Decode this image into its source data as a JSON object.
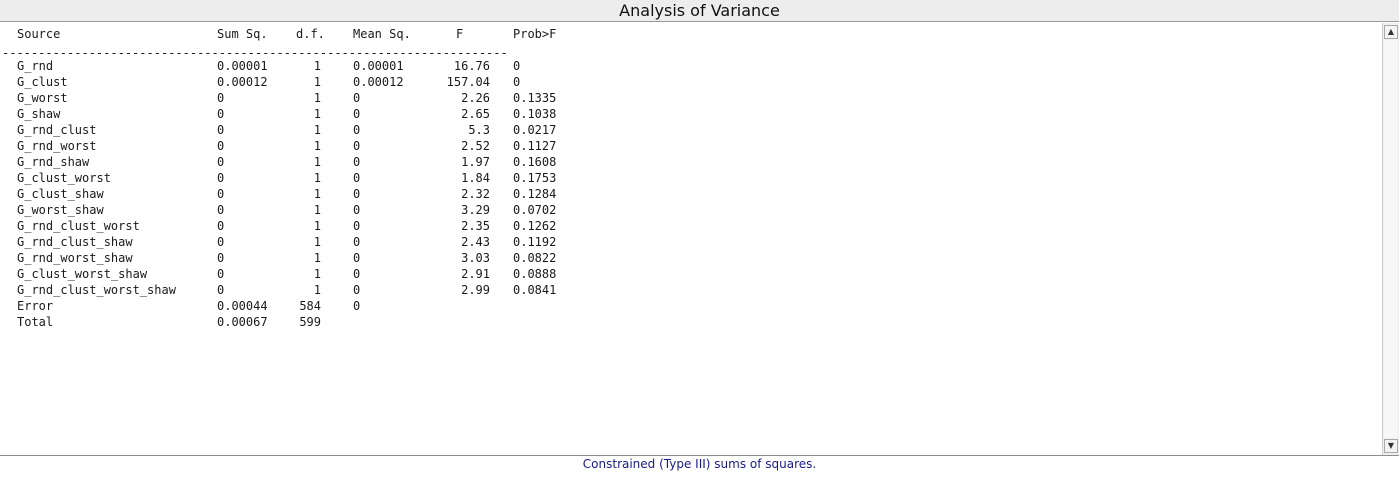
{
  "window": {
    "title": "Analysis of Variance"
  },
  "table": {
    "headers": {
      "source": "Source",
      "sum_sq": "Sum Sq.",
      "df": "d.f.",
      "mean_sq": "Mean Sq.",
      "f": "F",
      "prob": "Prob>F"
    },
    "separator": "----------------------------------------------------------------------",
    "rows": [
      {
        "source": "G_rnd",
        "sum_sq": "0.00001",
        "df": "1",
        "mean_sq": "0.00001",
        "f": "16.76",
        "prob": "0"
      },
      {
        "source": "G_clust",
        "sum_sq": "0.00012",
        "df": "1",
        "mean_sq": "0.00012",
        "f": "157.04",
        "prob": "0"
      },
      {
        "source": "G_worst",
        "sum_sq": "0",
        "df": "1",
        "mean_sq": "0",
        "f": "2.26",
        "prob": "0.1335"
      },
      {
        "source": "G_shaw",
        "sum_sq": "0",
        "df": "1",
        "mean_sq": "0",
        "f": "2.65",
        "prob": "0.1038"
      },
      {
        "source": "G_rnd_clust",
        "sum_sq": "0",
        "df": "1",
        "mean_sq": "0",
        "f": "5.3",
        "prob": "0.0217"
      },
      {
        "source": "G_rnd_worst",
        "sum_sq": "0",
        "df": "1",
        "mean_sq": "0",
        "f": "2.52",
        "prob": "0.1127"
      },
      {
        "source": "G_rnd_shaw",
        "sum_sq": "0",
        "df": "1",
        "mean_sq": "0",
        "f": "1.97",
        "prob": "0.1608"
      },
      {
        "source": "G_clust_worst",
        "sum_sq": "0",
        "df": "1",
        "mean_sq": "0",
        "f": "1.84",
        "prob": "0.1753"
      },
      {
        "source": "G_clust_shaw",
        "sum_sq": "0",
        "df": "1",
        "mean_sq": "0",
        "f": "2.32",
        "prob": "0.1284"
      },
      {
        "source": "G_worst_shaw",
        "sum_sq": "0",
        "df": "1",
        "mean_sq": "0",
        "f": "3.29",
        "prob": "0.0702"
      },
      {
        "source": "G_rnd_clust_worst",
        "sum_sq": "0",
        "df": "1",
        "mean_sq": "0",
        "f": "2.35",
        "prob": "0.1262"
      },
      {
        "source": "G_rnd_clust_shaw",
        "sum_sq": "0",
        "df": "1",
        "mean_sq": "0",
        "f": "2.43",
        "prob": "0.1192"
      },
      {
        "source": "G_rnd_worst_shaw",
        "sum_sq": "0",
        "df": "1",
        "mean_sq": "0",
        "f": "3.03",
        "prob": "0.0822"
      },
      {
        "source": "G_clust_worst_shaw",
        "sum_sq": "0",
        "df": "1",
        "mean_sq": "0",
        "f": "2.91",
        "prob": "0.0888"
      },
      {
        "source": "G_rnd_clust_worst_shaw",
        "sum_sq": "0",
        "df": "1",
        "mean_sq": "0",
        "f": "2.99",
        "prob": "0.0841"
      },
      {
        "source": "Error",
        "sum_sq": "0.00044",
        "df": "584",
        "mean_sq": "0",
        "f": "",
        "prob": ""
      },
      {
        "source": "Total",
        "sum_sq": "0.00067",
        "df": "599",
        "mean_sq": "",
        "f": "",
        "prob": ""
      }
    ]
  },
  "scrollbar": {
    "up_icon": "scroll-up-arrow-icon",
    "down_icon": "scroll-down-arrow-icon"
  },
  "footer": {
    "note": "Constrained (Type III) sums of squares."
  }
}
